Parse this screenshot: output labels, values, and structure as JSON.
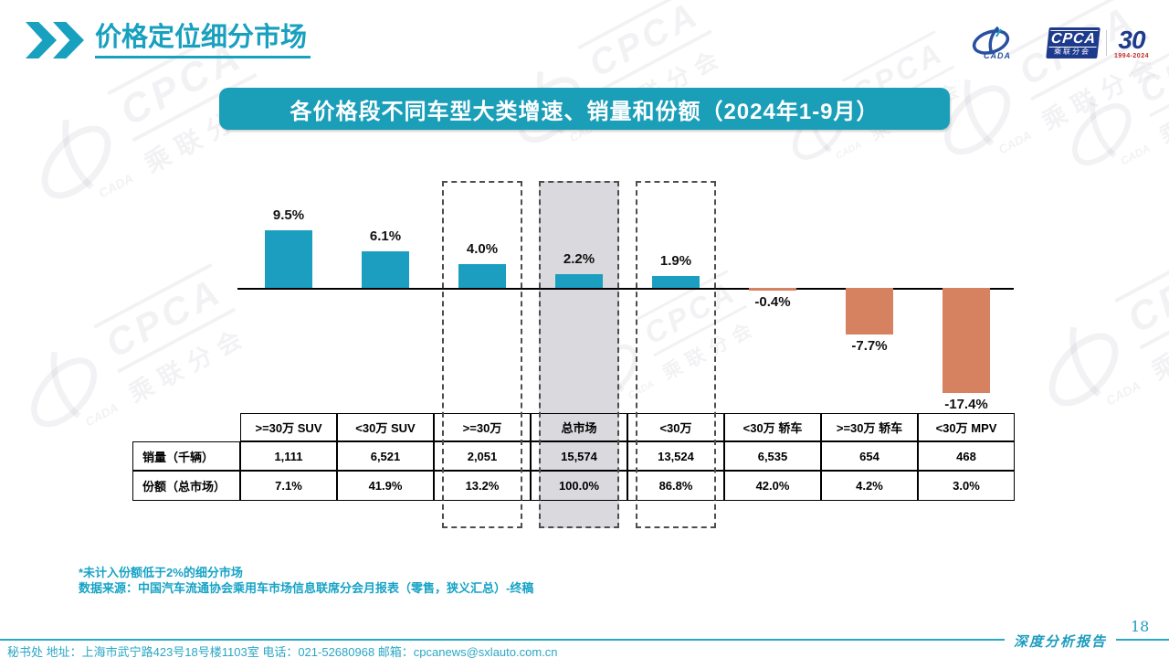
{
  "slide": {
    "title": "价格定位细分市场",
    "banner_title": "各价格段不同车型大类增速、销量和份额（2024年1-9月）",
    "notes": [
      "*未计入份额低于2%的细分市场",
      "数据来源：中国汽车流通协会乘用车市场信息联席分会月报表（零售，狭义汇总）-终稿"
    ],
    "footer_contact": "秘书处  地址：上海市武宁路423号18号楼1103室 电话：021-52680968  邮箱：cpcanews@sxlauto.com.cn",
    "report_label": "深度分析报告",
    "page_number": "18"
  },
  "logos": {
    "cada": "CADA",
    "cpca": "CPCA",
    "cpca_sub": "乘联分会",
    "anniversary": "30",
    "anniversary_years": "1994-2024"
  },
  "chart_data": {
    "type": "bar",
    "title": "各价格段不同车型大类增速、销量和份额（2024年1-9月）",
    "categories": [
      ">=30万 SUV",
      "<30万 SUV",
      ">=30万",
      "总市场",
      "<30万",
      "<30万 轿车",
      ">=30万 轿车",
      "<30万 MPV"
    ],
    "values": [
      9.5,
      6.1,
      4.0,
      2.2,
      1.9,
      -0.4,
      -7.7,
      -17.4
    ],
    "labels": [
      "9.5%",
      "6.1%",
      "4.0%",
      "2.2%",
      "1.9%",
      "-0.4%",
      "-7.7%",
      "-17.4%"
    ],
    "highlight_dashed_categories": [
      ">=30万",
      "总市场",
      "<30万"
    ],
    "highlight_filled_category": "总市场",
    "positive_color": "#1B9EC0",
    "negative_color": "#D6815F",
    "ylim": [
      -20,
      12
    ],
    "grid": false,
    "legend": false
  },
  "table": {
    "row_headers": [
      "销量（千辆）",
      "份额（总市场）"
    ],
    "columns": [
      ">=30万 SUV",
      "<30万 SUV",
      ">=30万",
      "总市场",
      "<30万",
      "<30万 轿车",
      ">=30万 轿车",
      "<30万 MPV"
    ],
    "rows": [
      [
        "1,111",
        "6,521",
        "2,051",
        "15,574",
        "13,524",
        "6,535",
        "654",
        "468"
      ],
      [
        "7.1%",
        "41.9%",
        "13.2%",
        "100.0%",
        "86.8%",
        "42.0%",
        "4.2%",
        "3.0%"
      ]
    ]
  },
  "colors": {
    "teal": "#1B9EC0",
    "orange": "#D6815F",
    "navy": "#1E3A8C",
    "gray_highlight": "#D9D9DE",
    "red": "#C42A2A"
  }
}
